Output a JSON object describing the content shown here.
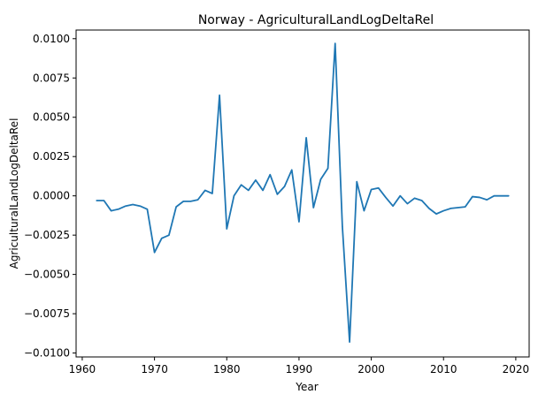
{
  "chart_data": {
    "type": "line",
    "title": "Norway - AgriculturalLandLogDeltaRel",
    "xlabel": "Year",
    "ylabel": "AgriculturalLandLogDeltaRel",
    "xlim": [
      1959.15,
      2021.85
    ],
    "ylim": [
      -0.01025,
      0.01055
    ],
    "xticks": [
      1960,
      1970,
      1980,
      1990,
      2000,
      2010,
      2020
    ],
    "xtick_labels": [
      "1960",
      "1970",
      "1980",
      "1990",
      "2000",
      "2010",
      "2020"
    ],
    "yticks": [
      0.01,
      0.0075,
      0.005,
      0.0025,
      0.0,
      -0.0025,
      -0.005,
      -0.0075,
      -0.01
    ],
    "ytick_labels": [
      "0.0100",
      "0.0075",
      "0.0050",
      "0.0025",
      "0.0000",
      "−0.0025",
      "−0.0050",
      "−0.0075",
      "−0.0100"
    ],
    "grid": false,
    "color": "#1f77b4",
    "series": [
      {
        "x": [
          1962,
          1963,
          1964,
          1965,
          1966,
          1967,
          1968,
          1969,
          1970,
          1971,
          1972,
          1973,
          1974,
          1975,
          1976,
          1977,
          1978,
          1979,
          1980,
          1981,
          1982,
          1983,
          1984,
          1985,
          1986,
          1987,
          1988,
          1989,
          1990,
          1991,
          1992,
          1993,
          1994,
          1995,
          1996,
          1997,
          1998,
          1999,
          2000,
          2001,
          2002,
          2003,
          2004,
          2005,
          2006,
          2007,
          2008,
          2009,
          2010,
          2011,
          2012,
          2013,
          2014,
          2015,
          2016,
          2017,
          2018,
          2019
        ],
        "values": [
          -0.0003,
          -0.0003,
          -0.00095,
          -0.00085,
          -0.00065,
          -0.00055,
          -0.00065,
          -0.00085,
          -0.0036,
          -0.0027,
          -0.0025,
          -0.0007,
          -0.00035,
          -0.00035,
          -0.00025,
          0.00035,
          0.00015,
          0.0064,
          -0.0021,
          0.0,
          0.0007,
          0.00035,
          0.001,
          0.00035,
          0.00135,
          0.0001,
          0.0006,
          0.00165,
          -0.00165,
          0.0037,
          -0.00075,
          0.00105,
          0.00175,
          0.0097,
          -0.00195,
          -0.0093,
          0.0009,
          -0.00095,
          0.0004,
          0.0005,
          -0.0001,
          -0.00065,
          0.0,
          -0.0005,
          -0.00015,
          -0.0003,
          -0.0008,
          -0.00115,
          -0.00095,
          -0.0008,
          -0.00075,
          -0.0007,
          -5e-05,
          -0.0001,
          -0.00025,
          0.0,
          0.0,
          0.0
        ]
      }
    ]
  }
}
